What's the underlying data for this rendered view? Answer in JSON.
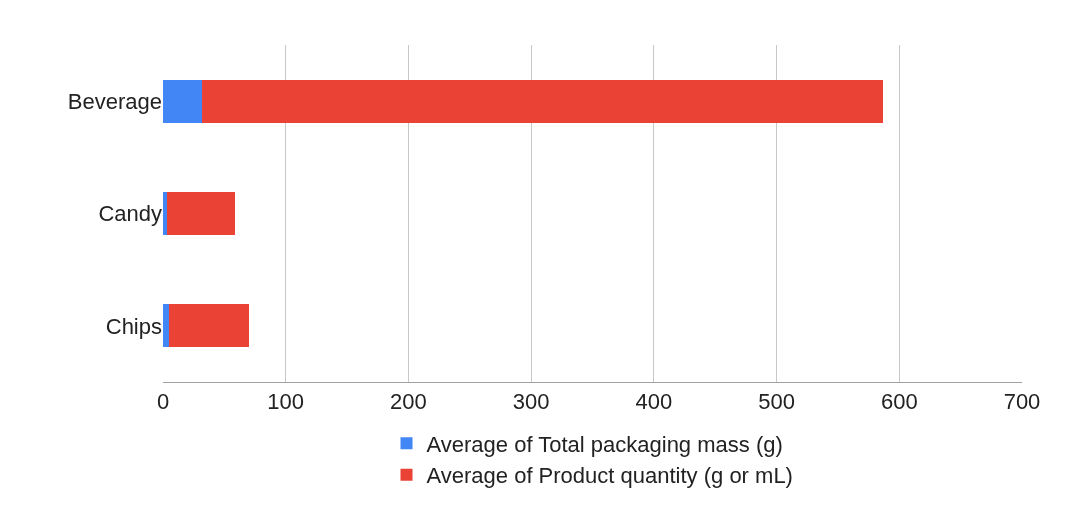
{
  "chart_data": {
    "type": "bar",
    "orientation": "horizontal",
    "stacked": true,
    "categories": [
      "Beverage",
      "Candy",
      "Chips"
    ],
    "series": [
      {
        "name": "Average of Total packaging mass (g)",
        "color": "#4285f4",
        "values": [
          32,
          3,
          5
        ]
      },
      {
        "name": "Average of Product quantity (g or mL)",
        "color": "#ea4335",
        "values": [
          555,
          56,
          65
        ]
      }
    ],
    "xlim": [
      0,
      700
    ],
    "xticks": [
      0,
      100,
      200,
      300,
      400,
      500,
      600,
      700
    ],
    "grid": "x",
    "legend": "bottom"
  }
}
